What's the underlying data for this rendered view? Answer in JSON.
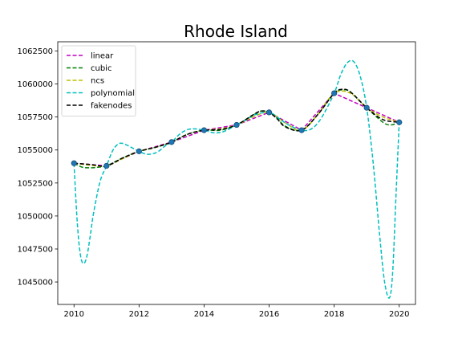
{
  "chart_data": {
    "type": "line",
    "title": "Rhode Island",
    "xlabel": "",
    "ylabel": "",
    "xlim": [
      2009.5,
      2020.5
    ],
    "ylim": [
      1043300,
      1063200
    ],
    "x_ticks": [
      2010,
      2012,
      2014,
      2016,
      2018,
      2020
    ],
    "y_ticks": [
      1045000,
      1047500,
      1050000,
      1052500,
      1055000,
      1057500,
      1060000,
      1062500
    ],
    "grid": false,
    "legend_position": "upper-left",
    "data_points": {
      "x": [
        2010,
        2011,
        2012,
        2013,
        2014,
        2015,
        2016,
        2017,
        2018,
        2019,
        2020
      ],
      "y": [
        1054000,
        1053800,
        1054900,
        1055600,
        1056500,
        1056900,
        1057850,
        1056500,
        1059300,
        1058200,
        1057100
      ],
      "color": "#1f77b4"
    },
    "series": [
      {
        "name": "linear",
        "color": "#bf00bf",
        "x": [
          2010,
          2011,
          2012,
          2013,
          2014,
          2015,
          2016,
          2017,
          2018,
          2019,
          2020
        ],
        "y": [
          1054000,
          1053800,
          1054900,
          1055600,
          1056500,
          1056900,
          1057850,
          1056500,
          1059300,
          1058200,
          1057100
        ]
      },
      {
        "name": "cubic",
        "color": "#008000",
        "x": [
          2010,
          2010.25,
          2010.5,
          2010.75,
          2011,
          2011.5,
          2012,
          2012.5,
          2013,
          2013.5,
          2014,
          2014.5,
          2015,
          2015.5,
          2015.75,
          2016,
          2016.25,
          2016.5,
          2017,
          2017.5,
          2018,
          2018.25,
          2018.5,
          2019,
          2019.5,
          2019.75,
          2020
        ],
        "y": [
          1054000,
          1053700,
          1053650,
          1053700,
          1053800,
          1054400,
          1054900,
          1055200,
          1055600,
          1056200,
          1056500,
          1056500,
          1056900,
          1057650,
          1057950,
          1057850,
          1057400,
          1056800,
          1056500,
          1057700,
          1059300,
          1059550,
          1059400,
          1058200,
          1057100,
          1056900,
          1057100
        ]
      },
      {
        "name": "ncs",
        "color": "#bfbf00",
        "x": [
          2010,
          2010.5,
          2011,
          2011.5,
          2012,
          2012.5,
          2013,
          2013.5,
          2014,
          2014.5,
          2015,
          2015.5,
          2016,
          2016.5,
          2017,
          2017.5,
          2018,
          2018.5,
          2019,
          2019.5,
          2020
        ],
        "y": [
          1054000,
          1053850,
          1053800,
          1054350,
          1054900,
          1055200,
          1055600,
          1056200,
          1056500,
          1056600,
          1056900,
          1057500,
          1057850,
          1057050,
          1056500,
          1057700,
          1059300,
          1059300,
          1058200,
          1057500,
          1057100
        ]
      },
      {
        "name": "polynomial",
        "color": "#00bfbf",
        "x": [
          2010,
          2010.1,
          2010.2,
          2010.3,
          2010.4,
          2010.5,
          2010.6,
          2010.8,
          2011,
          2011.2,
          2011.4,
          2011.6,
          2011.8,
          2012,
          2012.2,
          2012.4,
          2012.6,
          2012.8,
          2013,
          2013.3,
          2013.6,
          2014,
          2014.3,
          2014.6,
          2015,
          2015.3,
          2015.6,
          2016,
          2016.3,
          2016.6,
          2017,
          2017.3,
          2017.6,
          2018,
          2018.2,
          2018.4,
          2018.6,
          2018.8,
          2019,
          2019.2,
          2019.4,
          2019.55,
          2019.7,
          2019.8,
          2019.9,
          2020
        ],
        "y": [
          1054000,
          1049500,
          1047000,
          1046400,
          1047000,
          1048500,
          1050200,
          1052600,
          1053800,
          1055000,
          1055500,
          1055400,
          1055150,
          1054900,
          1054700,
          1054700,
          1054900,
          1055300,
          1055600,
          1056300,
          1056600,
          1056500,
          1056300,
          1056400,
          1056900,
          1057300,
          1057700,
          1057850,
          1057400,
          1056900,
          1056500,
          1056600,
          1057400,
          1059300,
          1060700,
          1061600,
          1061700,
          1060600,
          1058200,
          1054000,
          1048500,
          1045000,
          1043800,
          1045800,
          1051500,
          1057100
        ]
      },
      {
        "name": "fakenodes",
        "color": "#000000",
        "x": [
          2010,
          2010.5,
          2011,
          2011.5,
          2012,
          2012.5,
          2013,
          2013.5,
          2014,
          2014.5,
          2015,
          2015.5,
          2015.75,
          2016,
          2016.25,
          2016.5,
          2017,
          2017.5,
          2018,
          2018.25,
          2018.5,
          2019,
          2019.5,
          2020
        ],
        "y": [
          1054000,
          1053900,
          1053800,
          1054400,
          1054900,
          1055200,
          1055600,
          1056200,
          1056500,
          1056550,
          1056900,
          1057650,
          1057950,
          1057850,
          1057350,
          1056750,
          1056500,
          1057700,
          1059300,
          1059600,
          1059400,
          1058200,
          1057300,
          1057100
        ]
      }
    ]
  }
}
